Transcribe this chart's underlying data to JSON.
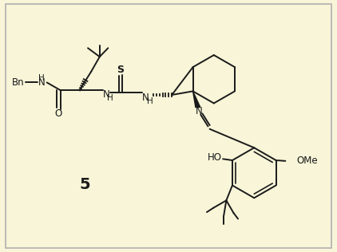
{
  "bg_color": "#f8f5d8",
  "line_color": "#1a1a1a",
  "figsize": [
    4.22,
    3.16
  ],
  "dpi": 100,
  "title": "5",
  "xlim": [
    0,
    10
  ],
  "ylim": [
    0,
    7.5
  ]
}
